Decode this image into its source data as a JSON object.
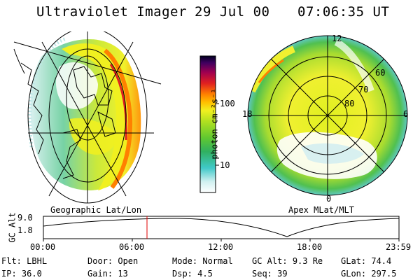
{
  "header": {
    "title": "Ultraviolet Imager",
    "date": "29 Jul 00",
    "time": "07:06:35 UT"
  },
  "colorbar": {
    "label": "photon cm⁻²s⁻¹",
    "ticks": [
      "100",
      "10"
    ]
  },
  "geo_panel": {
    "label": "Geographic Lat/Lon"
  },
  "polar_panel": {
    "label": "Apex MLat/MLT",
    "lat_labels": [
      "60",
      "70",
      "80"
    ],
    "mlt_labels": [
      "12",
      "18",
      "6",
      "0"
    ]
  },
  "altitude_plot": {
    "ylabel": "GC Alt",
    "yticks": [
      "9.0",
      "1.8"
    ],
    "xticks": [
      "00:00",
      "06:00",
      "12:00",
      "18:00",
      "23:59"
    ],
    "marker_time": "07:06"
  },
  "info": {
    "row1": [
      {
        "label": "Flt:",
        "value": "LBHL"
      },
      {
        "label": "Door:",
        "value": "Open"
      },
      {
        "label": "Mode:",
        "value": "Normal"
      },
      {
        "label": "GC Alt:",
        "value": "9.3 Re"
      },
      {
        "label": "GLat:",
        "value": "74.4"
      }
    ],
    "row2": [
      {
        "label": "IP:",
        "value": "36.0"
      },
      {
        "label": "Gain:",
        "value": "13"
      },
      {
        "label": "Dsp:",
        "value": "4.5"
      },
      {
        "label": "Seq:",
        "value": "39"
      },
      {
        "label": "GLon:",
        "value": "297.5"
      }
    ]
  },
  "colors": {
    "marker": "#e00000"
  }
}
